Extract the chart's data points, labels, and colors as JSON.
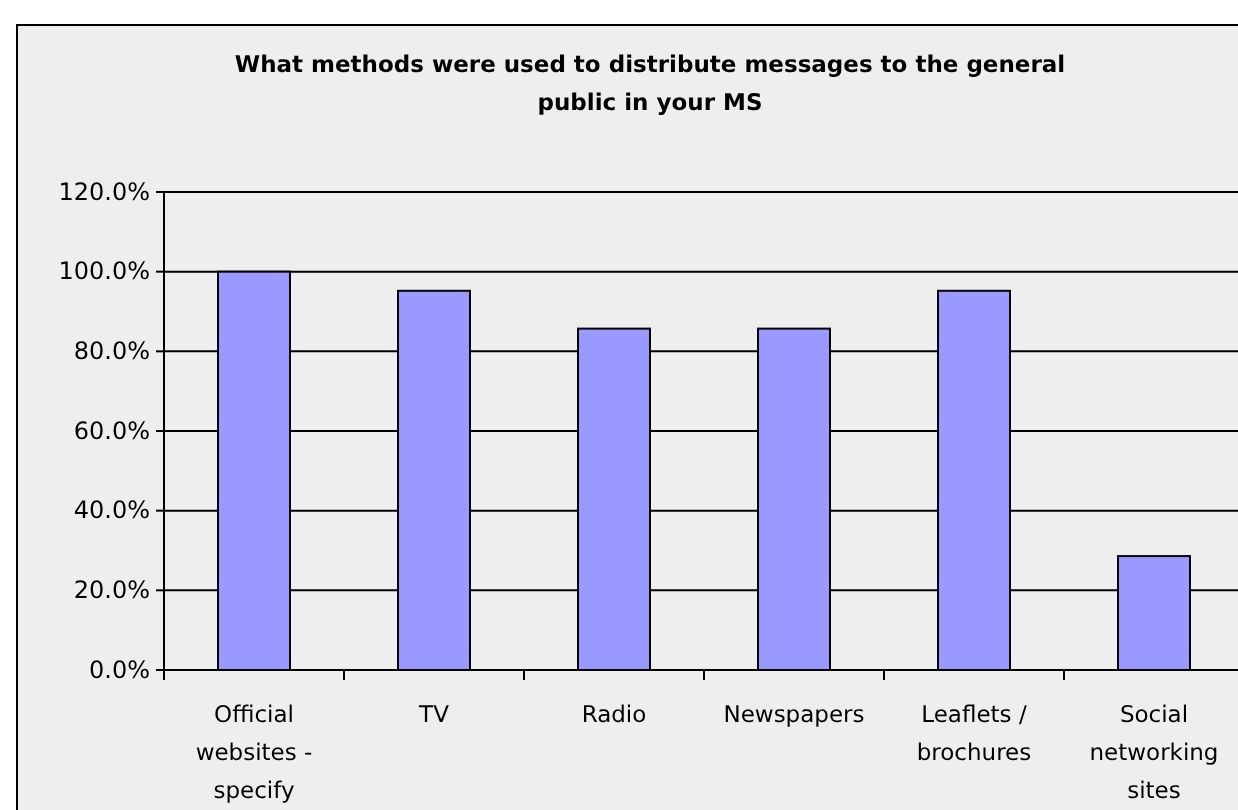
{
  "chart_data": {
    "type": "bar",
    "title": "What methods were used to distribute messages to the general public in your MS",
    "categories": [
      "Official websites - specify",
      "TV",
      "Radio",
      "Newspapers",
      "Leaflets / brochures",
      "Social networking sites"
    ],
    "values": [
      100,
      95.2,
      85.7,
      85.7,
      95.2,
      28.6
    ],
    "color": "#9999ff",
    "ylim": [
      0,
      120
    ],
    "yticks": [
      {
        "value": 0,
        "label": "0.0%"
      },
      {
        "value": 20,
        "label": "20.0%"
      },
      {
        "value": 40,
        "label": "40.0%"
      },
      {
        "value": 60,
        "label": "60.0%"
      },
      {
        "value": 80,
        "label": "80.0%"
      },
      {
        "value": 100,
        "label": "100.0%"
      },
      {
        "value": 120,
        "label": "120.0%"
      }
    ],
    "grid": "y"
  }
}
